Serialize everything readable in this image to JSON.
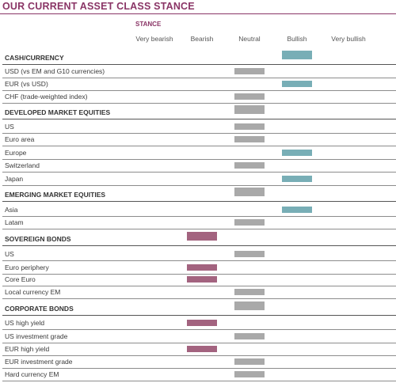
{
  "title": "OUR CURRENT ASSET CLASS STANCE",
  "stance_label": "STANCE",
  "columns": [
    "Very bearish",
    "Bearish",
    "Neutral",
    "Bullish",
    "Very bullish"
  ],
  "colors": {
    "bearish": "#a3637f",
    "neutral": "#a9a9a9",
    "bullish": "#78aeb6",
    "title": "#8a3566"
  },
  "rows": [
    {
      "label": "CASH/CURRENCY",
      "section": true,
      "stance": "Bullish"
    },
    {
      "label": "USD (vs EM and G10 currencies)",
      "section": false,
      "stance": "Neutral"
    },
    {
      "label": "EUR (vs USD)",
      "section": false,
      "stance": "Bullish"
    },
    {
      "label": "CHF (trade-weighted index)",
      "section": false,
      "stance": "Neutral"
    },
    {
      "label": "DEVELOPED MARKET EQUITIES",
      "section": true,
      "stance": "Neutral"
    },
    {
      "label": "US",
      "section": false,
      "stance": "Neutral"
    },
    {
      "label": "Euro area",
      "section": false,
      "stance": "Neutral"
    },
    {
      "label": "Europe",
      "section": false,
      "stance": "Bullish"
    },
    {
      "label": "Switzerland",
      "section": false,
      "stance": "Neutral"
    },
    {
      "label": "Japan",
      "section": false,
      "stance": "Bullish"
    },
    {
      "label": "EMERGING MARKET EQUITIES",
      "section": true,
      "stance": "Neutral"
    },
    {
      "label": "Asia",
      "section": false,
      "stance": "Bullish"
    },
    {
      "label": "Latam",
      "section": false,
      "stance": "Neutral"
    },
    {
      "label": "SOVEREIGN BONDS",
      "section": true,
      "stance": "Bearish"
    },
    {
      "label": "US",
      "section": false,
      "stance": "Neutral"
    },
    {
      "label": "Euro periphery",
      "section": false,
      "stance": "Bearish"
    },
    {
      "label": "Core Euro",
      "section": false,
      "stance": "Bearish"
    },
    {
      "label": "Local currency EM",
      "section": false,
      "stance": "Neutral"
    },
    {
      "label": "CORPORATE BONDS",
      "section": true,
      "stance": "Neutral"
    },
    {
      "label": "US high yield",
      "section": false,
      "stance": "Bearish"
    },
    {
      "label": "US investment grade",
      "section": false,
      "stance": "Neutral"
    },
    {
      "label": "EUR high yield",
      "section": false,
      "stance": "Bearish"
    },
    {
      "label": "EUR investment grade",
      "section": false,
      "stance": "Neutral"
    },
    {
      "label": "Hard currency EM",
      "section": false,
      "stance": "Neutral"
    }
  ]
}
